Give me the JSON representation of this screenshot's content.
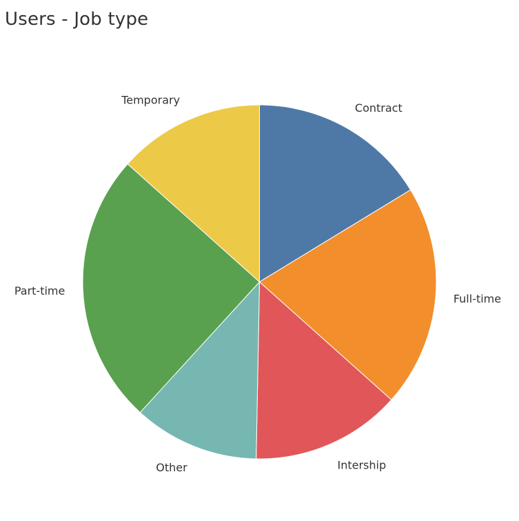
{
  "title": "Users - Job type",
  "chart_data": {
    "type": "pie",
    "title": "Users - Job type",
    "categories": [
      "Contract",
      "Full-time",
      "Intership",
      "Other",
      "Part-time",
      "Temporary"
    ],
    "values": [
      16.3,
      20.3,
      13.7,
      11.5,
      24.8,
      13.4
    ],
    "unit": "%",
    "colors": [
      "#4e79a7",
      "#f28e2b",
      "#e15759",
      "#76b7b2",
      "#59a14f",
      "#edc948"
    ],
    "start_angle_deg": 0,
    "direction": "clockwise"
  }
}
